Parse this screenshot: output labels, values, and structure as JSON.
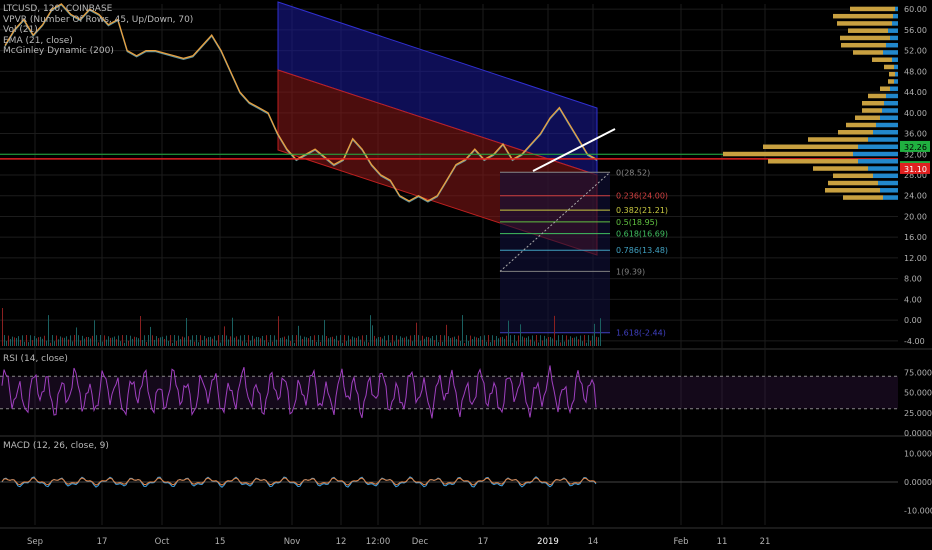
{
  "legend": {
    "symbol": "LTCUSD, 120, COINBASE",
    "studies": [
      "VPVR (Number Of Rows, 45, Up/Down, 70)",
      "Vol (21)",
      "EMA (21, close)",
      "McGinley Dynamic (200)"
    ]
  },
  "panes": {
    "rsi_label": "RSI (14, close)",
    "macd_label": "MACD (12, 26, close, 9)"
  },
  "colors": {
    "background": "#000000",
    "grid": "#1c1c1c",
    "price_line": "#e8a040",
    "ema_line": "#70b8c8",
    "channel_upper": "#1a1a9a",
    "channel_lower": "#8a1818",
    "rsi_line": "#a040c0",
    "vpvr_up": "#2288cc",
    "vpvr_down": "#c8a040",
    "red_hline": "#e02020",
    "green_hline": "#20b040"
  },
  "chart_data": [
    {
      "type": "line",
      "title": "LTCUSD, 120, COINBASE",
      "x_axis_ticks": [
        "Sep",
        "17",
        "Oct",
        "15",
        "Nov",
        "12",
        "12:00",
        "Dec",
        "17",
        "2019",
        "14",
        "Feb",
        "11",
        "21"
      ],
      "y_axis_ticks": [
        "60.00",
        "56.00",
        "52.00",
        "48.00",
        "44.00",
        "40.00",
        "36.00",
        "32.00",
        "28.00",
        "24.00",
        "20.00",
        "16.00",
        "12.00",
        "8.00",
        "4.00",
        "0.00",
        "-4.00"
      ],
      "ylim": [
        -5,
        61
      ],
      "series": [
        {
          "name": "LTCUSD",
          "values": [
            53,
            56,
            58,
            55,
            57,
            60,
            61,
            59,
            58,
            60,
            59,
            57,
            58,
            52,
            51,
            52,
            52,
            51.5,
            51,
            50.5,
            51,
            53,
            55,
            52,
            48,
            44,
            42,
            41,
            40,
            36,
            33,
            31,
            32,
            33,
            31.5,
            30,
            31,
            35,
            33,
            30,
            28,
            27,
            24,
            23,
            24,
            23,
            24,
            27,
            30,
            31,
            33,
            31,
            32,
            34,
            31,
            32,
            34,
            36,
            39,
            41,
            38,
            35,
            32,
            31
          ]
        }
      ],
      "price_labels": [
        {
          "value": "32.26",
          "color": "#20b040"
        },
        {
          "value": "30.10",
          "color": "#20b040"
        },
        {
          "value": "31.10",
          "color": "#e02020"
        }
      ],
      "fibonacci": [
        {
          "label": "0(28.52)",
          "value": 28.52,
          "color": "#888888"
        },
        {
          "label": "0.236(24.00)",
          "value": 24.0,
          "color": "#d04040"
        },
        {
          "label": "0.382(21.21)",
          "value": 21.21,
          "color": "#c8c840"
        },
        {
          "label": "0.5(18.95)",
          "value": 18.95,
          "color": "#60c040"
        },
        {
          "label": "0.618(16.69)",
          "value": 16.69,
          "color": "#40c060"
        },
        {
          "label": "0.786(13.48)",
          "value": 13.48,
          "color": "#40a0c0"
        },
        {
          "label": "1(9.39)",
          "value": 9.39,
          "color": "#808080"
        },
        {
          "label": "1.618(-2.44)",
          "value": -2.44,
          "color": "#4040c0"
        }
      ],
      "vpvr_buckets": [
        {
          "price": 60,
          "up": 3,
          "down": 45
        },
        {
          "price": 58.6,
          "up": 5,
          "down": 60
        },
        {
          "price": 57.2,
          "up": 6,
          "down": 55
        },
        {
          "price": 55.8,
          "up": 10,
          "down": 40
        },
        {
          "price": 54.4,
          "up": 8,
          "down": 50
        },
        {
          "price": 53,
          "up": 12,
          "down": 45
        },
        {
          "price": 51.6,
          "up": 15,
          "down": 30
        },
        {
          "price": 50.2,
          "up": 6,
          "down": 20
        },
        {
          "price": 48.8,
          "up": 4,
          "down": 10
        },
        {
          "price": 47.4,
          "up": 3,
          "down": 6
        },
        {
          "price": 46,
          "up": 4,
          "down": 6
        },
        {
          "price": 44.6,
          "up": 8,
          "down": 10
        },
        {
          "price": 43.2,
          "up": 12,
          "down": 18
        },
        {
          "price": 41.8,
          "up": 14,
          "down": 22
        },
        {
          "price": 40.4,
          "up": 16,
          "down": 20
        },
        {
          "price": 39,
          "up": 18,
          "down": 25
        },
        {
          "price": 37.6,
          "up": 22,
          "down": 30
        },
        {
          "price": 36.2,
          "up": 25,
          "down": 35
        },
        {
          "price": 34.8,
          "up": 30,
          "down": 60
        },
        {
          "price": 33.4,
          "up": 40,
          "down": 95
        },
        {
          "price": 32,
          "up": 45,
          "down": 130
        },
        {
          "price": 30.6,
          "up": 40,
          "down": 90
        },
        {
          "price": 29.2,
          "up": 30,
          "down": 55
        },
        {
          "price": 27.8,
          "up": 25,
          "down": 40
        },
        {
          "price": 26.4,
          "up": 20,
          "down": 50
        },
        {
          "price": 25,
          "up": 18,
          "down": 55
        },
        {
          "price": 23.6,
          "up": 15,
          "down": 40
        }
      ]
    },
    {
      "type": "line",
      "title": "RSI (14, close)",
      "y_axis_ticks": [
        "75.0000",
        "50.0000",
        "25.0000",
        "0.0000"
      ],
      "ylim": [
        0,
        100
      ],
      "bands": [
        70,
        30
      ]
    },
    {
      "type": "line",
      "title": "MACD (12, 26, close, 9)",
      "y_axis_ticks": [
        "10.0000",
        "0.0000",
        "-10.0000"
      ],
      "ylim": [
        -15,
        15
      ]
    }
  ]
}
